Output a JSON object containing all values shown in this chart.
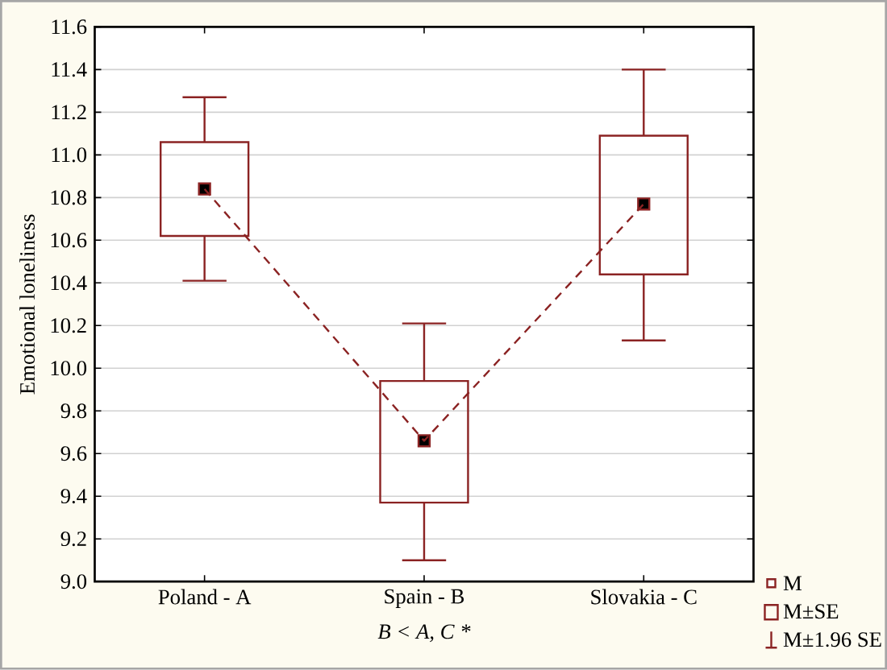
{
  "chart_data": {
    "type": "box",
    "ylabel": "Emotional loneliness",
    "categories": [
      "Poland - A",
      "Spain - B",
      "Slovakia - C"
    ],
    "ylim": [
      9.0,
      11.6
    ],
    "yticks": [
      {
        "value": 9.0,
        "label": "9.0"
      },
      {
        "value": 9.2,
        "label": "9.2"
      },
      {
        "value": 9.4,
        "label": "9.4"
      },
      {
        "value": 9.6,
        "label": "9.6"
      },
      {
        "value": 9.8,
        "label": "9.8"
      },
      {
        "value": 10.0,
        "label": "10.0"
      },
      {
        "value": 10.2,
        "label": "10.2"
      },
      {
        "value": 10.4,
        "label": "10.4"
      },
      {
        "value": 10.6,
        "label": "10.6"
      },
      {
        "value": 10.8,
        "label": "10.8"
      },
      {
        "value": 11.0,
        "label": "11.0"
      },
      {
        "value": 11.2,
        "label": "11.2"
      },
      {
        "value": 11.4,
        "label": "11.4"
      },
      {
        "value": 11.6,
        "label": "11.6"
      }
    ],
    "grid": "y",
    "series": [
      {
        "type": "box",
        "color": "#8b2323",
        "boxes": [
          {
            "low": 10.41,
            "q1": 10.62,
            "mean": 10.84,
            "q3": 11.06,
            "high": 11.27
          },
          {
            "low": 9.1,
            "q1": 9.37,
            "mean": 9.66,
            "q3": 9.94,
            "high": 10.21
          },
          {
            "low": 10.13,
            "q1": 10.44,
            "mean": 10.77,
            "q3": 11.09,
            "high": 11.4
          }
        ]
      },
      {
        "type": "line",
        "color": "#8b2323",
        "values": [
          10.84,
          9.66,
          10.77
        ],
        "line_style": "dashed"
      }
    ],
    "annotations": [
      "B < A, C *",
      "M",
      "M±SE",
      "M±1.96 SE"
    ]
  }
}
